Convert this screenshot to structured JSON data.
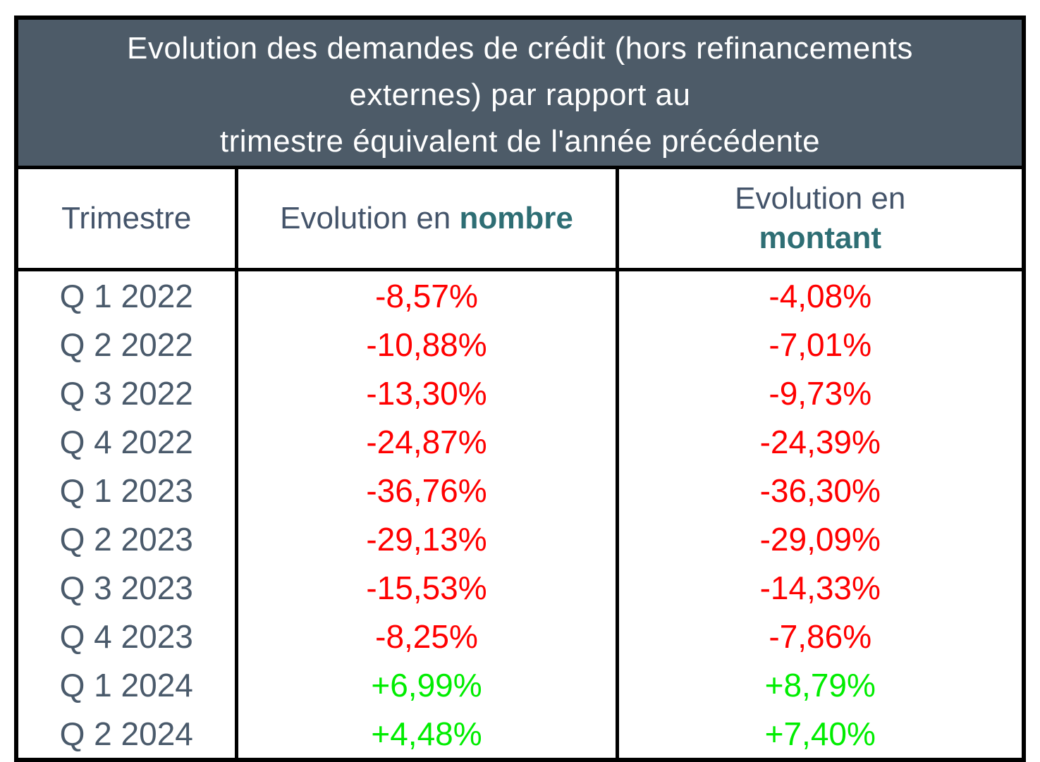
{
  "table": {
    "title_lines": [
      "Evolution des demandes de crédit (hors refinancements",
      "externes) par rapport au",
      "trimestre équivalent de l'année précédente"
    ],
    "columns": {
      "quarter": "Trimestre",
      "number_prefix": "Evolution en ",
      "number_bold": "nombre",
      "amount_prefix": "Evolution en",
      "amount_bold": "montant"
    },
    "rows": [
      {
        "quarter": "Q 1 2022",
        "number": "-8,57%",
        "amount": "-4,08%",
        "trend": "negative"
      },
      {
        "quarter": "Q 2 2022",
        "number": "-10,88%",
        "amount": "-7,01%",
        "trend": "negative"
      },
      {
        "quarter": "Q 3 2022",
        "number": "-13,30%",
        "amount": "-9,73%",
        "trend": "negative"
      },
      {
        "quarter": "Q 4 2022",
        "number": "-24,87%",
        "amount": "-24,39%",
        "trend": "negative"
      },
      {
        "quarter": "Q 1 2023",
        "number": "-36,76%",
        "amount": "-36,30%",
        "trend": "negative"
      },
      {
        "quarter": "Q 2 2023",
        "number": "-29,13%",
        "amount": "-29,09%",
        "trend": "negative"
      },
      {
        "quarter": "Q 3 2023",
        "number": "-15,53%",
        "amount": "-14,33%",
        "trend": "negative"
      },
      {
        "quarter": "Q 4 2023",
        "number": "-8,25%",
        "amount": "-7,86%",
        "trend": "negative"
      },
      {
        "quarter": "Q 1 2024",
        "number": "+6,99%",
        "amount": "+8,79%",
        "trend": "positive"
      },
      {
        "quarter": "Q 2 2024",
        "number": "+4,48%",
        "amount": "+7,40%",
        "trend": "positive"
      }
    ],
    "colors": {
      "title_bg": "#4D5B68",
      "title_text": "#FFFFFF",
      "header_slate": "#44546A",
      "header_teal": "#2E6E74",
      "row_slate": "#4A5A6B",
      "negative": "#FF0000",
      "positive": "#00ED00",
      "border": "#000000"
    }
  },
  "chart_data": {
    "type": "table",
    "title": "Evolution des demandes de crédit (hors refinancements externes) par rapport au trimestre équivalent de l'année précédente",
    "categories": [
      "Q 1 2022",
      "Q 2 2022",
      "Q 3 2022",
      "Q 4 2022",
      "Q 1 2023",
      "Q 2 2023",
      "Q 3 2023",
      "Q 4 2023",
      "Q 1 2024",
      "Q 2 2024"
    ],
    "series": [
      {
        "name": "Evolution en nombre",
        "values": [
          -8.57,
          -10.88,
          -13.3,
          -24.87,
          -36.76,
          -29.13,
          -15.53,
          -8.25,
          6.99,
          4.48
        ]
      },
      {
        "name": "Evolution en montant",
        "values": [
          -4.08,
          -7.01,
          -9.73,
          -24.39,
          -36.3,
          -29.09,
          -14.33,
          -7.86,
          8.79,
          7.4
        ]
      }
    ],
    "value_format": "percent, comma decimal separator, sign prefix",
    "layout": "3-column table: quarter | evolution in number | evolution in amount; negative values red, positive values green"
  }
}
